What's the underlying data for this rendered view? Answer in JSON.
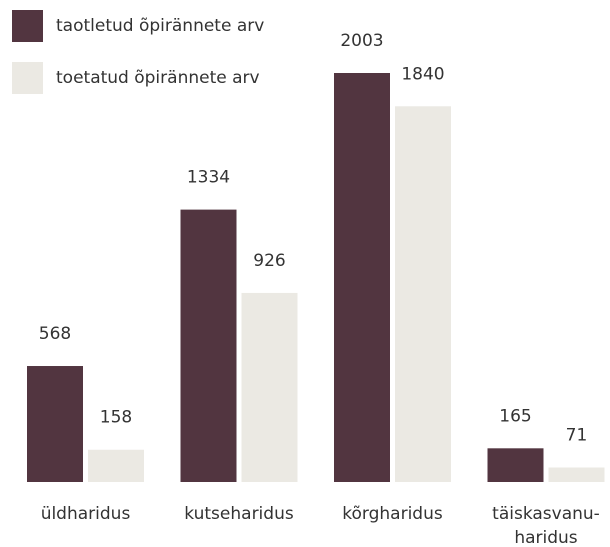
{
  "chart_data": {
    "type": "bar",
    "categories": [
      "üldharidus",
      "kutseharidus",
      "kõrgharidus",
      "täiskasvanu-\nharidus"
    ],
    "series": [
      {
        "name": "taotletud õpirännete arv",
        "color": "#523540",
        "values": [
          568,
          1334,
          2003,
          165
        ]
      },
      {
        "name": "toetatud õpirännete arv",
        "color": "#ebe9e3",
        "values": [
          158,
          926,
          1840,
          71
        ]
      }
    ],
    "legend": "top-left"
  }
}
